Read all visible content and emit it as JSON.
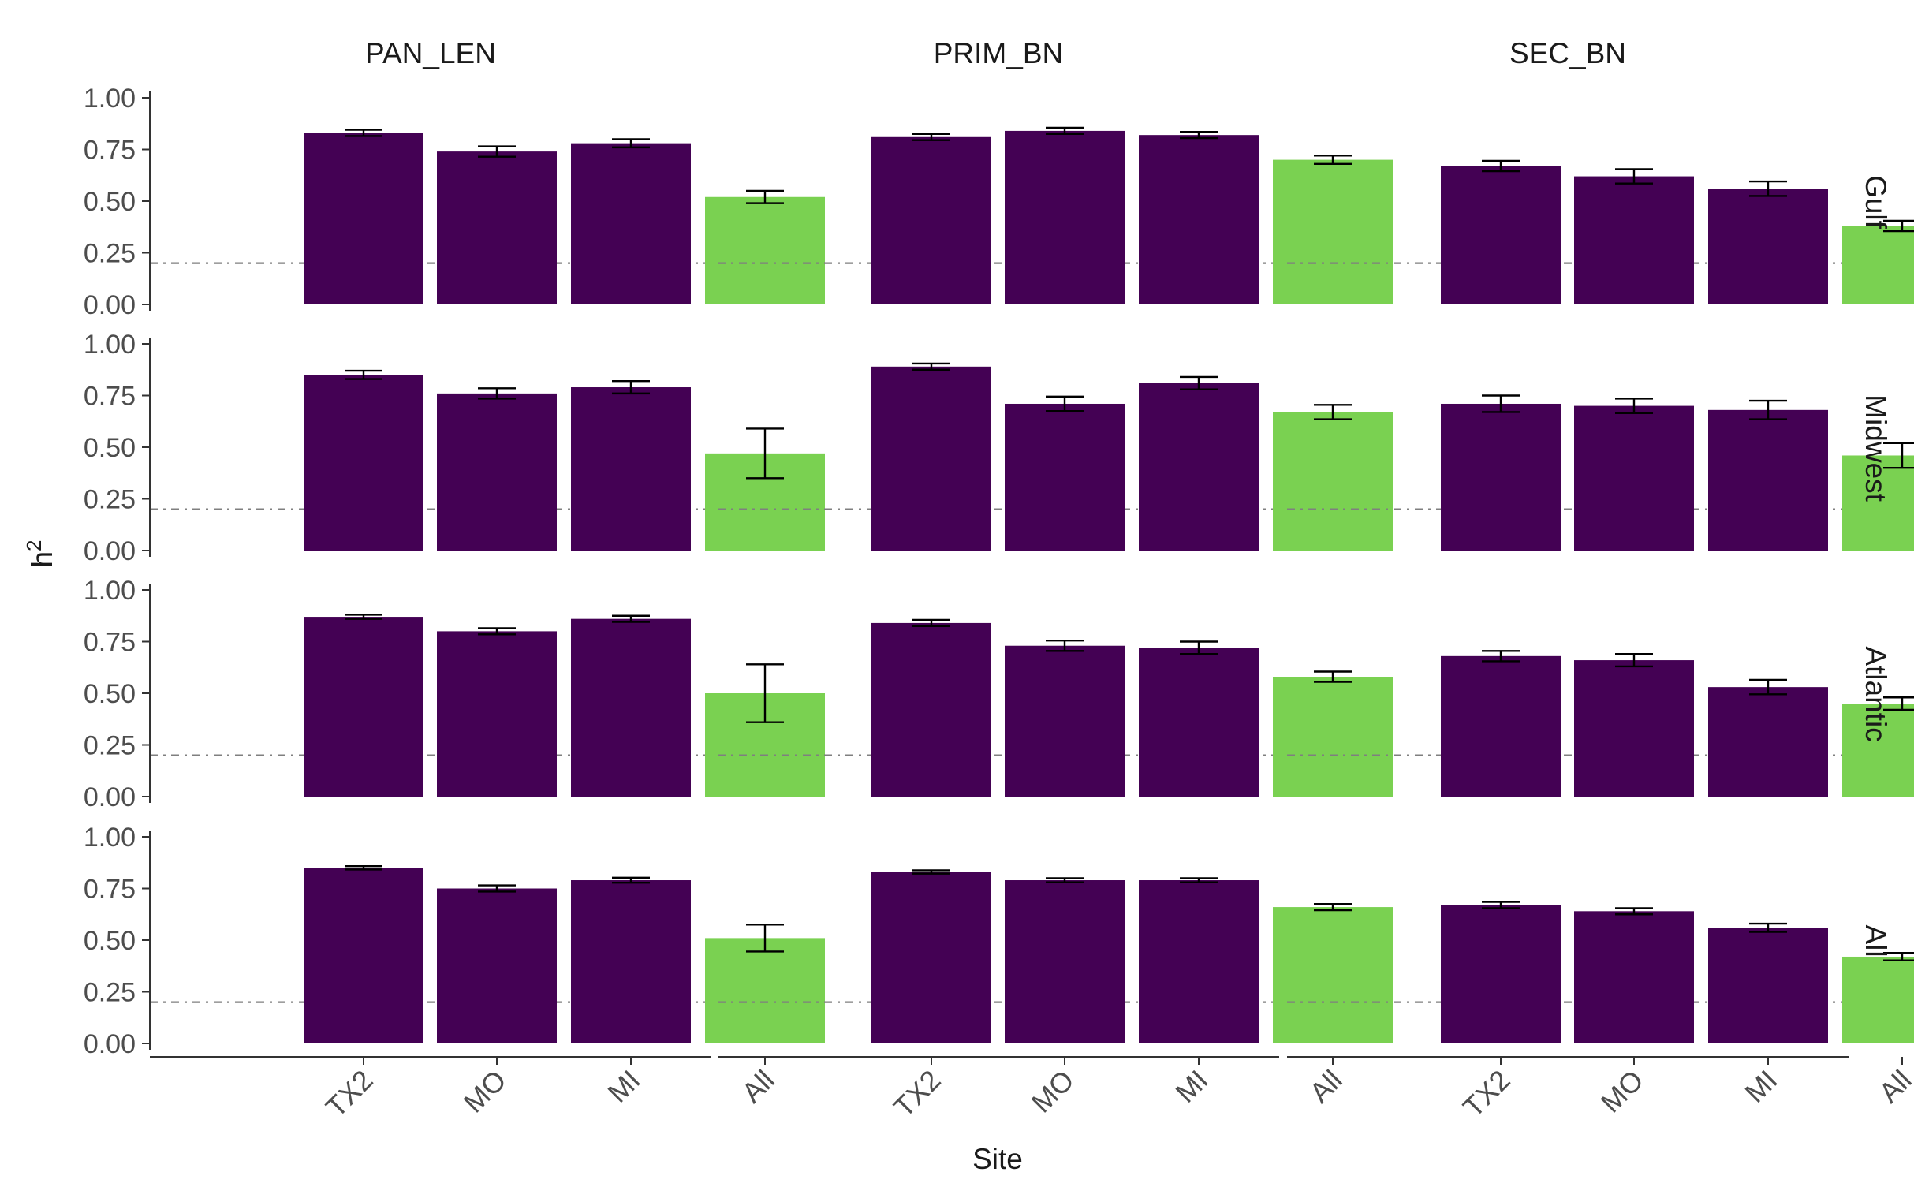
{
  "chart_data": {
    "type": "bar",
    "xlabel": "Site",
    "ylabel": "h2",
    "ylabel_main": "h",
    "ylabel_sup": "2",
    "categories": [
      "TX2",
      "MO",
      "MI",
      "All"
    ],
    "facet_columns": [
      "PAN_LEN",
      "PRIM_BN",
      "SEC_BN"
    ],
    "facet_rows": [
      "Gulf",
      "Midwest",
      "Atlantic",
      "All"
    ],
    "ylim": [
      0,
      1
    ],
    "yticks": [
      "0.00",
      "0.25",
      "0.50",
      "0.75",
      "1.00"
    ],
    "reference_line": 0.2,
    "colors": {
      "site": "#440154",
      "all": "#7AD151",
      "reference": "#7f7f7f",
      "axis": "#333333"
    },
    "panels": [
      {
        "row": "Gulf",
        "column": "PAN_LEN",
        "values": [
          0.83,
          0.74,
          0.78,
          0.52
        ],
        "errors": [
          0.015,
          0.025,
          0.02,
          0.03
        ]
      },
      {
        "row": "Gulf",
        "column": "PRIM_BN",
        "values": [
          0.81,
          0.84,
          0.82,
          0.7
        ],
        "errors": [
          0.015,
          0.015,
          0.015,
          0.02
        ]
      },
      {
        "row": "Gulf",
        "column": "SEC_BN",
        "values": [
          0.67,
          0.62,
          0.56,
          0.38
        ],
        "errors": [
          0.025,
          0.035,
          0.035,
          0.025
        ]
      },
      {
        "row": "Midwest",
        "column": "PAN_LEN",
        "values": [
          0.85,
          0.76,
          0.79,
          0.47
        ],
        "errors": [
          0.02,
          0.025,
          0.03,
          0.12
        ]
      },
      {
        "row": "Midwest",
        "column": "PRIM_BN",
        "values": [
          0.89,
          0.71,
          0.81,
          0.67
        ],
        "errors": [
          0.015,
          0.035,
          0.03,
          0.035
        ]
      },
      {
        "row": "Midwest",
        "column": "SEC_BN",
        "values": [
          0.71,
          0.7,
          0.68,
          0.46
        ],
        "errors": [
          0.04,
          0.035,
          0.045,
          0.06
        ]
      },
      {
        "row": "Atlantic",
        "column": "PAN_LEN",
        "values": [
          0.87,
          0.8,
          0.86,
          0.5
        ],
        "errors": [
          0.01,
          0.015,
          0.015,
          0.14
        ]
      },
      {
        "row": "Atlantic",
        "column": "PRIM_BN",
        "values": [
          0.84,
          0.73,
          0.72,
          0.58
        ],
        "errors": [
          0.015,
          0.025,
          0.03,
          0.025
        ]
      },
      {
        "row": "Atlantic",
        "column": "SEC_BN",
        "values": [
          0.68,
          0.66,
          0.53,
          0.45
        ],
        "errors": [
          0.025,
          0.03,
          0.035,
          0.03
        ]
      },
      {
        "row": "All",
        "column": "PAN_LEN",
        "values": [
          0.85,
          0.75,
          0.79,
          0.51
        ],
        "errors": [
          0.008,
          0.015,
          0.012,
          0.065
        ]
      },
      {
        "row": "All",
        "column": "PRIM_BN",
        "values": [
          0.83,
          0.79,
          0.79,
          0.66
        ],
        "errors": [
          0.008,
          0.01,
          0.01,
          0.015
        ]
      },
      {
        "row": "All",
        "column": "SEC_BN",
        "values": [
          0.67,
          0.64,
          0.56,
          0.42
        ],
        "errors": [
          0.015,
          0.015,
          0.02,
          0.018
        ]
      }
    ]
  }
}
